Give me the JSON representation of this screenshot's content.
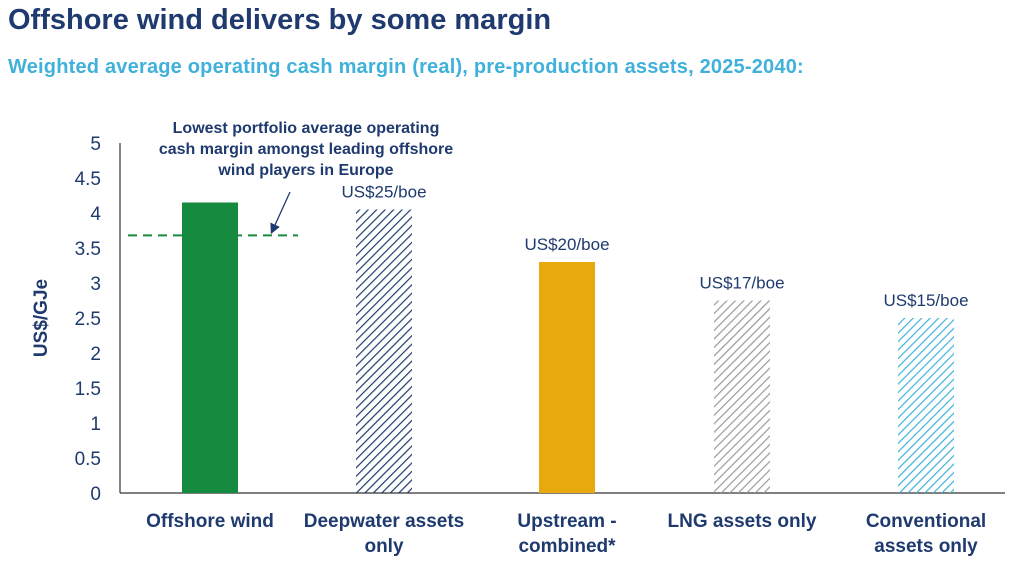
{
  "header": {
    "title": "Offshore wind delivers by some margin",
    "subtitle": "Weighted average operating cash margin (real), pre-production assets, 2025-2040:"
  },
  "chart_data": {
    "type": "bar",
    "title": "Offshore wind delivers by some margin",
    "subtitle": "Weighted average operating cash margin (real), pre-production assets, 2025-2040:",
    "xlabel": "",
    "ylabel": "US$/GJe",
    "ylim": [
      0,
      5
    ],
    "yticks": [
      "0",
      "0.5",
      "1",
      "1.5",
      "2",
      "2.5",
      "3",
      "3.5",
      "4",
      "4.5",
      "5"
    ],
    "grid": false,
    "categories": [
      [
        "Offshore wind"
      ],
      [
        "Deepwater assets",
        "only"
      ],
      [
        "Upstream -",
        "combined*"
      ],
      [
        "LNG assets only"
      ],
      [
        "Conventional",
        "assets only"
      ]
    ],
    "values": [
      4.15,
      4.05,
      3.3,
      2.75,
      2.5
    ],
    "data_labels": [
      "",
      "US$25/boe",
      "US$20/boe",
      "US$17/boe",
      "US$15/boe"
    ],
    "bar_styles": [
      {
        "fill": "solid",
        "color": "#168a3e"
      },
      {
        "fill": "hatch",
        "color": "#1f3a6e"
      },
      {
        "fill": "solid",
        "color": "#e8a90f"
      },
      {
        "fill": "hatch",
        "color": "#9a9a9a"
      },
      {
        "fill": "hatch",
        "color": "#3fb1da"
      }
    ],
    "reference_line": {
      "value": 3.68,
      "style": "dashed",
      "color": "#168a3e",
      "annotation": [
        "Lowest portfolio average operating",
        "cash margin amongst leading offshore",
        "wind players in Europe"
      ]
    }
  }
}
